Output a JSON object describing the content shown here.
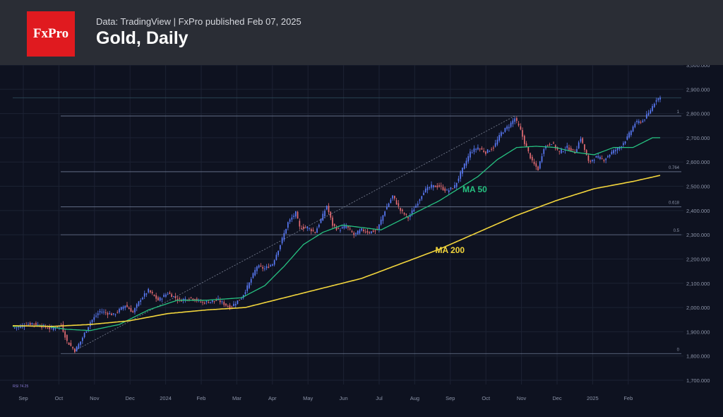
{
  "header": {
    "logo_text": "FxPro",
    "meta": "Data: TradingView | FxPro published Feb 07, 2025",
    "title": "Gold, Daily"
  },
  "colors": {
    "up": "#5b7cfa",
    "down": "#e86d74",
    "ma50": "#26c281",
    "ma200": "#f2d53c",
    "fib": "#6f7b94",
    "grid": "#1c2233"
  },
  "chart_data": {
    "type": "candlestick",
    "title": "Gold, Daily",
    "ylim": [
      1700,
      3000
    ],
    "y_ticks": [
      1700,
      1800,
      1900,
      2000,
      2100,
      2200,
      2300,
      2400,
      2500,
      2600,
      2700,
      2800,
      2900,
      3000
    ],
    "y_tick_labels": [
      "1,700.000",
      "1,800.000",
      "1,900.000",
      "2,000.000",
      "2,100.000",
      "2,200.000",
      "2,300.000",
      "2,400.000",
      "2,500.000",
      "2,600.000",
      "2,700.000",
      "2,800.000",
      "2,900.000",
      "3,000.000"
    ],
    "x_months": [
      "Sep",
      "Oct",
      "Nov",
      "Dec",
      "2024",
      "Feb",
      "Mar",
      "Apr",
      "May",
      "Jun",
      "Jul",
      "Aug",
      "Sep",
      "Oct",
      "Nov",
      "Dec",
      "2025",
      "Feb"
    ],
    "price_keypoints": [
      [
        0,
        1915
      ],
      [
        10,
        1935
      ],
      [
        20,
        1912
      ],
      [
        25,
        1928
      ],
      [
        28,
        1860
      ],
      [
        32,
        1822
      ],
      [
        35,
        1860
      ],
      [
        40,
        1940
      ],
      [
        45,
        1985
      ],
      [
        52,
        1970
      ],
      [
        58,
        2010
      ],
      [
        62,
        1980
      ],
      [
        66,
        2035
      ],
      [
        70,
        2070
      ],
      [
        75,
        2030
      ],
      [
        80,
        2060
      ],
      [
        86,
        2030
      ],
      [
        92,
        2040
      ],
      [
        98,
        2020
      ],
      [
        106,
        2030
      ],
      [
        112,
        2000
      ],
      [
        118,
        2040
      ],
      [
        122,
        2100
      ],
      [
        126,
        2170
      ],
      [
        130,
        2160
      ],
      [
        134,
        2180
      ],
      [
        138,
        2260
      ],
      [
        142,
        2350
      ],
      [
        146,
        2390
      ],
      [
        148,
        2330
      ],
      [
        152,
        2330
      ],
      [
        156,
        2310
      ],
      [
        160,
        2380
      ],
      [
        162,
        2420
      ],
      [
        165,
        2340
      ],
      [
        168,
        2320
      ],
      [
        172,
        2335
      ],
      [
        176,
        2300
      ],
      [
        180,
        2320
      ],
      [
        184,
        2310
      ],
      [
        188,
        2320
      ],
      [
        192,
        2400
      ],
      [
        196,
        2460
      ],
      [
        200,
        2400
      ],
      [
        204,
        2370
      ],
      [
        208,
        2420
      ],
      [
        212,
        2480
      ],
      [
        216,
        2500
      ],
      [
        220,
        2500
      ],
      [
        224,
        2480
      ],
      [
        228,
        2500
      ],
      [
        232,
        2570
      ],
      [
        236,
        2640
      ],
      [
        240,
        2660
      ],
      [
        244,
        2640
      ],
      [
        248,
        2660
      ],
      [
        252,
        2720
      ],
      [
        256,
        2750
      ],
      [
        259,
        2780
      ],
      [
        262,
        2730
      ],
      [
        264,
        2680
      ],
      [
        268,
        2600
      ],
      [
        271,
        2570
      ],
      [
        274,
        2660
      ],
      [
        278,
        2680
      ],
      [
        282,
        2640
      ],
      [
        286,
        2660
      ],
      [
        290,
        2640
      ],
      [
        293,
        2700
      ],
      [
        297,
        2600
      ],
      [
        301,
        2620
      ],
      [
        305,
        2610
      ],
      [
        309,
        2640
      ],
      [
        313,
        2660
      ],
      [
        317,
        2700
      ],
      [
        321,
        2760
      ],
      [
        325,
        2770
      ],
      [
        328,
        2800
      ],
      [
        332,
        2860
      ],
      [
        334,
        2865
      ]
    ],
    "ma50_keypoints": [
      [
        0,
        1922
      ],
      [
        15,
        1925
      ],
      [
        28,
        1910
      ],
      [
        40,
        1905
      ],
      [
        55,
        1930
      ],
      [
        70,
        1990
      ],
      [
        85,
        2030
      ],
      [
        100,
        2030
      ],
      [
        118,
        2040
      ],
      [
        130,
        2090
      ],
      [
        140,
        2170
      ],
      [
        150,
        2260
      ],
      [
        160,
        2310
      ],
      [
        170,
        2340
      ],
      [
        180,
        2330
      ],
      [
        190,
        2320
      ],
      [
        200,
        2360
      ],
      [
        210,
        2400
      ],
      [
        220,
        2440
      ],
      [
        230,
        2490
      ],
      [
        240,
        2540
      ],
      [
        250,
        2610
      ],
      [
        260,
        2660
      ],
      [
        270,
        2665
      ],
      [
        280,
        2660
      ],
      [
        290,
        2640
      ],
      [
        300,
        2630
      ],
      [
        310,
        2660
      ],
      [
        320,
        2660
      ],
      [
        330,
        2700
      ]
    ],
    "ma200_keypoints": [
      [
        0,
        1925
      ],
      [
        20,
        1922
      ],
      [
        40,
        1930
      ],
      [
        60,
        1945
      ],
      [
        80,
        1975
      ],
      [
        100,
        1990
      ],
      [
        120,
        2000
      ],
      [
        140,
        2040
      ],
      [
        160,
        2080
      ],
      [
        180,
        2120
      ],
      [
        200,
        2180
      ],
      [
        220,
        2240
      ],
      [
        240,
        2310
      ],
      [
        260,
        2380
      ],
      [
        280,
        2440
      ],
      [
        300,
        2490
      ],
      [
        320,
        2520
      ],
      [
        334,
        2545
      ]
    ],
    "fib_levels": [
      {
        "label": "1",
        "value": 2790
      },
      {
        "label": "0.764",
        "value": 2560
      },
      {
        "label": "0.618",
        "value": 2415
      },
      {
        "label": "0.5",
        "value": 2300
      },
      {
        "label": "0",
        "value": 1810
      }
    ],
    "annotations": [
      {
        "label": "MA 50",
        "color": "#26c281",
        "bar": 232,
        "value": 2475
      },
      {
        "label": "MA 200",
        "color": "#f2d53c",
        "bar": 218,
        "value": 2225
      }
    ],
    "rsi_label": "RSI 74.25"
  }
}
